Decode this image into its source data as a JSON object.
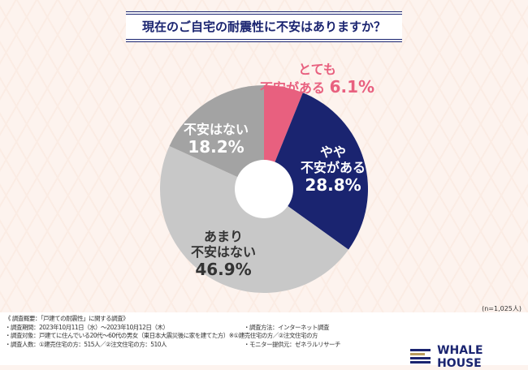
{
  "title": "現在のご自宅の耐震性に不安はありますか？",
  "chart_data": {
    "type": "pie",
    "title": "現在のご自宅の耐震性に不安はありますか？",
    "categories": [
      "とても不安がある",
      "やや不安がある",
      "あまり不安はない",
      "不安はない"
    ],
    "values": [
      6.1,
      28.8,
      46.9,
      18.2
    ],
    "colors": [
      "#e8607f",
      "#1a2470",
      "#c8c8c8",
      "#a3a3a3"
    ],
    "labels": [
      {
        "l1": "とても",
        "l2": "不安がある",
        "pct": "6.1%"
      },
      {
        "l1": "やや",
        "l2": "不安がある",
        "pct": "28.8%"
      },
      {
        "l1": "あまり",
        "l2": "不安はない",
        "pct": "46.9%"
      },
      {
        "l1": "不安はない",
        "l2": "",
        "pct": "18.2%"
      }
    ]
  },
  "sample": "(n=1,025人)",
  "notes": [
    "《 調査概要：「戸建ての耐震性」に関する調査》",
    "・調査期間：2023年10月11日（水）～2023年10月12日（木）",
    "・調査対象：戸建てに住んでいる20代～60代の男女（東日本大震災後に家を建てた方）※①建売住宅の方／②注文住宅の方",
    "・調査人数：①建売住宅の方：515人／②注文住宅の方：510人"
  ],
  "notes_right": [
    "・調査方法：インターネット調査",
    "・モニター提供元：ゼネラルリサーチ"
  ],
  "brand": "WHALE HOUSE"
}
